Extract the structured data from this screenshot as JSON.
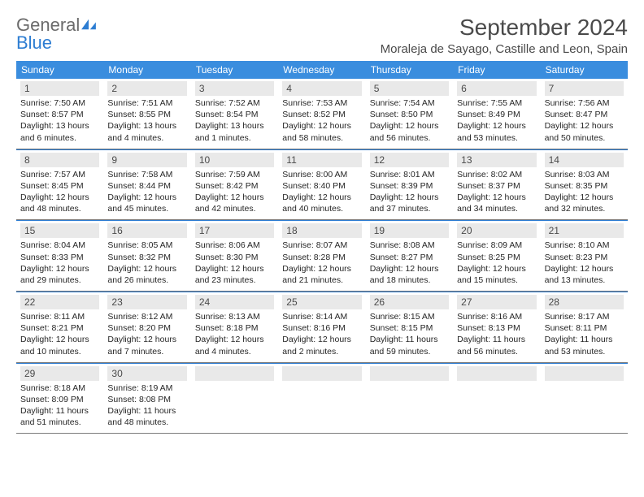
{
  "logo": {
    "line1": "General",
    "line2": "Blue"
  },
  "title": "September 2024",
  "subtitle": "Moraleja de Sayago, Castille and Leon, Spain",
  "colors": {
    "header_bg": "#3a8dde",
    "header_text": "#ffffff",
    "daynum_bg": "#e9e9e9",
    "text": "#262626",
    "divider": "#7a7a7a",
    "week_divider": "#2d7dd2",
    "logo_gray": "#6b6b6b",
    "logo_blue": "#2d7dd2",
    "background": "#ffffff"
  },
  "typography": {
    "title_fontsize": 28,
    "subtitle_fontsize": 15,
    "dayhead_fontsize": 12,
    "daynum_fontsize": 12,
    "info_fontsize": 10.5
  },
  "dayheads": [
    "Sunday",
    "Monday",
    "Tuesday",
    "Wednesday",
    "Thursday",
    "Friday",
    "Saturday"
  ],
  "days": [
    {
      "n": "1",
      "sunrise": "Sunrise: 7:50 AM",
      "sunset": "Sunset: 8:57 PM",
      "daylight": "Daylight: 13 hours and 6 minutes."
    },
    {
      "n": "2",
      "sunrise": "Sunrise: 7:51 AM",
      "sunset": "Sunset: 8:55 PM",
      "daylight": "Daylight: 13 hours and 4 minutes."
    },
    {
      "n": "3",
      "sunrise": "Sunrise: 7:52 AM",
      "sunset": "Sunset: 8:54 PM",
      "daylight": "Daylight: 13 hours and 1 minutes."
    },
    {
      "n": "4",
      "sunrise": "Sunrise: 7:53 AM",
      "sunset": "Sunset: 8:52 PM",
      "daylight": "Daylight: 12 hours and 58 minutes."
    },
    {
      "n": "5",
      "sunrise": "Sunrise: 7:54 AM",
      "sunset": "Sunset: 8:50 PM",
      "daylight": "Daylight: 12 hours and 56 minutes."
    },
    {
      "n": "6",
      "sunrise": "Sunrise: 7:55 AM",
      "sunset": "Sunset: 8:49 PM",
      "daylight": "Daylight: 12 hours and 53 minutes."
    },
    {
      "n": "7",
      "sunrise": "Sunrise: 7:56 AM",
      "sunset": "Sunset: 8:47 PM",
      "daylight": "Daylight: 12 hours and 50 minutes."
    },
    {
      "n": "8",
      "sunrise": "Sunrise: 7:57 AM",
      "sunset": "Sunset: 8:45 PM",
      "daylight": "Daylight: 12 hours and 48 minutes."
    },
    {
      "n": "9",
      "sunrise": "Sunrise: 7:58 AM",
      "sunset": "Sunset: 8:44 PM",
      "daylight": "Daylight: 12 hours and 45 minutes."
    },
    {
      "n": "10",
      "sunrise": "Sunrise: 7:59 AM",
      "sunset": "Sunset: 8:42 PM",
      "daylight": "Daylight: 12 hours and 42 minutes."
    },
    {
      "n": "11",
      "sunrise": "Sunrise: 8:00 AM",
      "sunset": "Sunset: 8:40 PM",
      "daylight": "Daylight: 12 hours and 40 minutes."
    },
    {
      "n": "12",
      "sunrise": "Sunrise: 8:01 AM",
      "sunset": "Sunset: 8:39 PM",
      "daylight": "Daylight: 12 hours and 37 minutes."
    },
    {
      "n": "13",
      "sunrise": "Sunrise: 8:02 AM",
      "sunset": "Sunset: 8:37 PM",
      "daylight": "Daylight: 12 hours and 34 minutes."
    },
    {
      "n": "14",
      "sunrise": "Sunrise: 8:03 AM",
      "sunset": "Sunset: 8:35 PM",
      "daylight": "Daylight: 12 hours and 32 minutes."
    },
    {
      "n": "15",
      "sunrise": "Sunrise: 8:04 AM",
      "sunset": "Sunset: 8:33 PM",
      "daylight": "Daylight: 12 hours and 29 minutes."
    },
    {
      "n": "16",
      "sunrise": "Sunrise: 8:05 AM",
      "sunset": "Sunset: 8:32 PM",
      "daylight": "Daylight: 12 hours and 26 minutes."
    },
    {
      "n": "17",
      "sunrise": "Sunrise: 8:06 AM",
      "sunset": "Sunset: 8:30 PM",
      "daylight": "Daylight: 12 hours and 23 minutes."
    },
    {
      "n": "18",
      "sunrise": "Sunrise: 8:07 AM",
      "sunset": "Sunset: 8:28 PM",
      "daylight": "Daylight: 12 hours and 21 minutes."
    },
    {
      "n": "19",
      "sunrise": "Sunrise: 8:08 AM",
      "sunset": "Sunset: 8:27 PM",
      "daylight": "Daylight: 12 hours and 18 minutes."
    },
    {
      "n": "20",
      "sunrise": "Sunrise: 8:09 AM",
      "sunset": "Sunset: 8:25 PM",
      "daylight": "Daylight: 12 hours and 15 minutes."
    },
    {
      "n": "21",
      "sunrise": "Sunrise: 8:10 AM",
      "sunset": "Sunset: 8:23 PM",
      "daylight": "Daylight: 12 hours and 13 minutes."
    },
    {
      "n": "22",
      "sunrise": "Sunrise: 8:11 AM",
      "sunset": "Sunset: 8:21 PM",
      "daylight": "Daylight: 12 hours and 10 minutes."
    },
    {
      "n": "23",
      "sunrise": "Sunrise: 8:12 AM",
      "sunset": "Sunset: 8:20 PM",
      "daylight": "Daylight: 12 hours and 7 minutes."
    },
    {
      "n": "24",
      "sunrise": "Sunrise: 8:13 AM",
      "sunset": "Sunset: 8:18 PM",
      "daylight": "Daylight: 12 hours and 4 minutes."
    },
    {
      "n": "25",
      "sunrise": "Sunrise: 8:14 AM",
      "sunset": "Sunset: 8:16 PM",
      "daylight": "Daylight: 12 hours and 2 minutes."
    },
    {
      "n": "26",
      "sunrise": "Sunrise: 8:15 AM",
      "sunset": "Sunset: 8:15 PM",
      "daylight": "Daylight: 11 hours and 59 minutes."
    },
    {
      "n": "27",
      "sunrise": "Sunrise: 8:16 AM",
      "sunset": "Sunset: 8:13 PM",
      "daylight": "Daylight: 11 hours and 56 minutes."
    },
    {
      "n": "28",
      "sunrise": "Sunrise: 8:17 AM",
      "sunset": "Sunset: 8:11 PM",
      "daylight": "Daylight: 11 hours and 53 minutes."
    },
    {
      "n": "29",
      "sunrise": "Sunrise: 8:18 AM",
      "sunset": "Sunset: 8:09 PM",
      "daylight": "Daylight: 11 hours and 51 minutes."
    },
    {
      "n": "30",
      "sunrise": "Sunrise: 8:19 AM",
      "sunset": "Sunset: 8:08 PM",
      "daylight": "Daylight: 11 hours and 48 minutes."
    }
  ]
}
